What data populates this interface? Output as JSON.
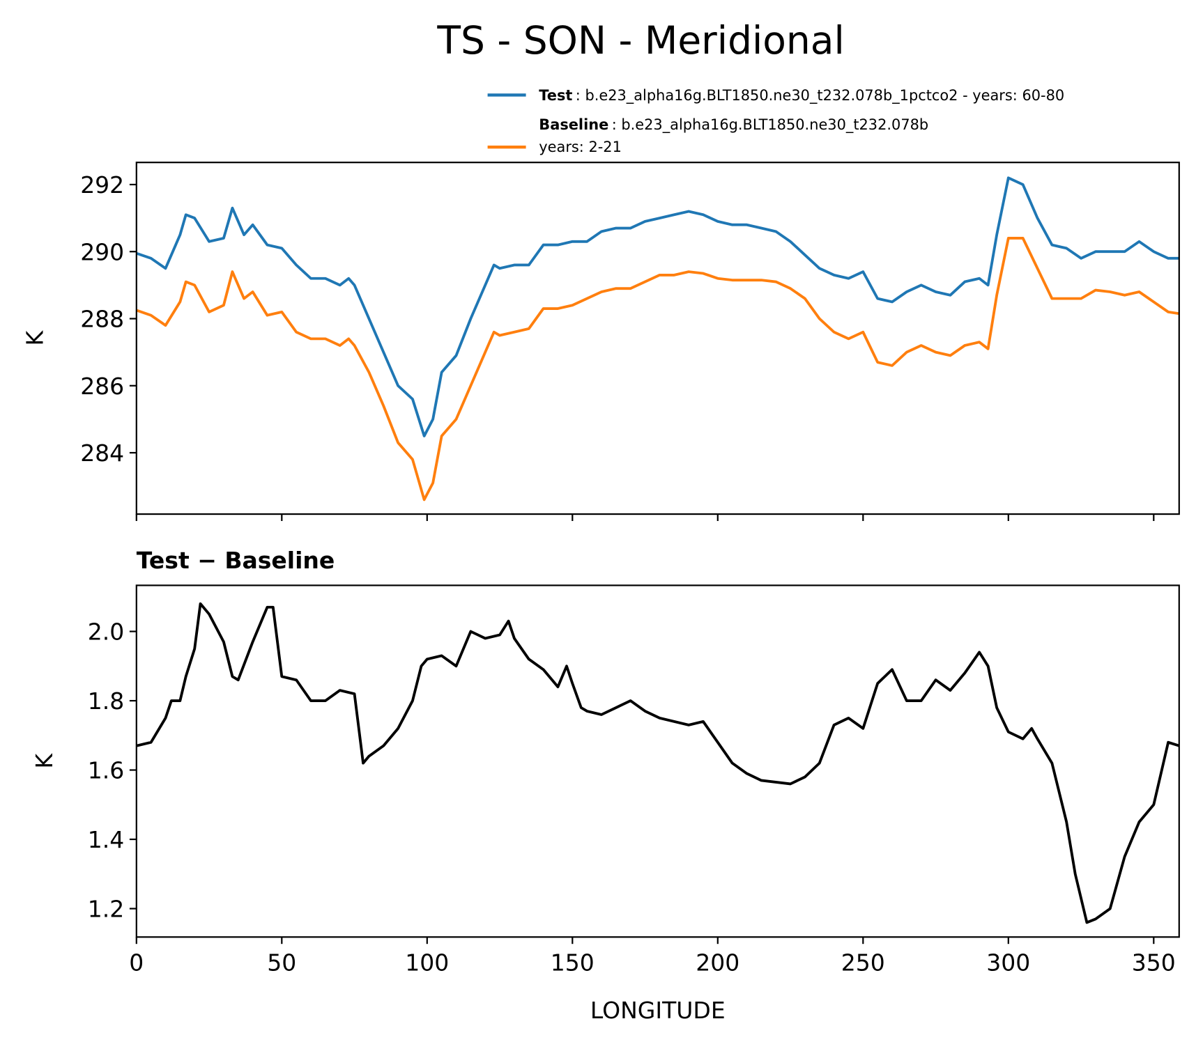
{
  "chart_data": [
    {
      "type": "line",
      "title": "TS - SON - Meridional",
      "ylabel": "K",
      "x": [
        0,
        5,
        10,
        15,
        17,
        20,
        25,
        30,
        33,
        37,
        40,
        45,
        50,
        55,
        60,
        65,
        70,
        73,
        75,
        80,
        85,
        90,
        95,
        99,
        102,
        105,
        110,
        115,
        120,
        123,
        125,
        130,
        135,
        140,
        145,
        150,
        155,
        160,
        165,
        170,
        175,
        180,
        185,
        190,
        195,
        200,
        205,
        210,
        215,
        220,
        225,
        230,
        235,
        240,
        245,
        250,
        255,
        260,
        265,
        270,
        275,
        280,
        285,
        290,
        293,
        296,
        300,
        305,
        310,
        315,
        320,
        325,
        330,
        335,
        340,
        345,
        350,
        355,
        358.75
      ],
      "series": [
        {
          "name": "Test",
          "description": [
            ": b.e23_alpha16g.BLT1850.ne30_t232.078b_1pctco2 - years: 60-80"
          ],
          "color": "#1f77b4",
          "values": [
            289.95,
            289.8,
            289.5,
            290.5,
            291.1,
            291.0,
            290.3,
            290.4,
            291.3,
            290.5,
            290.8,
            290.2,
            290.1,
            289.6,
            289.2,
            289.2,
            289.0,
            289.2,
            289.0,
            288.0,
            287.0,
            286.0,
            285.6,
            284.5,
            285.0,
            286.4,
            286.9,
            288.0,
            289.0,
            289.6,
            289.5,
            289.6,
            289.6,
            290.2,
            290.2,
            290.3,
            290.3,
            290.6,
            290.7,
            290.7,
            290.9,
            291.0,
            291.1,
            291.2,
            291.1,
            290.9,
            290.8,
            290.8,
            290.7,
            290.6,
            290.3,
            289.9,
            289.5,
            289.3,
            289.2,
            289.4,
            288.6,
            288.5,
            288.8,
            289.0,
            288.8,
            288.7,
            289.1,
            289.2,
            289.0,
            290.5,
            292.2,
            292.0,
            291.0,
            290.2,
            290.1,
            289.8,
            290.0,
            290.0,
            290.0,
            290.3,
            290.0,
            289.8,
            289.8
          ]
        },
        {
          "name": "Baseline",
          "description": [
            ": b.e23_alpha16g.BLT1850.ne30_t232.078b",
            "years: 2-21"
          ],
          "color": "#ff7f0e",
          "values": [
            288.25,
            288.1,
            287.8,
            288.5,
            289.1,
            289.0,
            288.2,
            288.4,
            289.4,
            288.6,
            288.8,
            288.1,
            288.2,
            287.6,
            287.4,
            287.4,
            287.2,
            287.4,
            287.2,
            286.4,
            285.4,
            284.3,
            283.8,
            282.6,
            283.1,
            284.5,
            285.0,
            286.0,
            287.0,
            287.6,
            287.5,
            287.6,
            287.7,
            288.3,
            288.3,
            288.4,
            288.6,
            288.8,
            288.9,
            288.9,
            289.1,
            289.3,
            289.3,
            289.4,
            289.35,
            289.2,
            289.15,
            289.15,
            289.15,
            289.1,
            288.9,
            288.6,
            288.0,
            287.6,
            287.4,
            287.6,
            286.7,
            286.6,
            287.0,
            287.2,
            287.0,
            286.9,
            287.2,
            287.3,
            287.1,
            288.7,
            290.4,
            290.4,
            289.5,
            288.6,
            288.6,
            288.6,
            288.85,
            288.8,
            288.7,
            288.8,
            288.5,
            288.2,
            288.15
          ]
        }
      ],
      "xlim": [
        0,
        358.75
      ],
      "xticks": [
        0,
        50,
        100,
        150,
        200,
        250,
        300,
        350
      ],
      "ylim": [
        282.17,
        292.66
      ],
      "yticks": [
        284,
        286,
        288,
        290,
        292
      ],
      "legend": "upper right"
    },
    {
      "type": "line",
      "title": "Test − Baseline",
      "ylabel": "K",
      "xlabel": "LONGITUDE",
      "x": [
        0,
        5,
        10,
        12,
        15,
        17,
        20,
        22,
        25,
        30,
        33,
        35,
        40,
        45,
        47,
        50,
        55,
        60,
        65,
        70,
        75,
        78,
        80,
        85,
        90,
        95,
        98,
        100,
        105,
        110,
        115,
        120,
        125,
        128,
        130,
        135,
        140,
        145,
        148,
        150,
        153,
        155,
        160,
        165,
        170,
        175,
        180,
        185,
        190,
        195,
        200,
        205,
        210,
        215,
        220,
        225,
        230,
        235,
        240,
        245,
        250,
        255,
        260,
        265,
        270,
        275,
        280,
        285,
        290,
        293,
        296,
        300,
        305,
        308,
        310,
        315,
        320,
        323,
        327,
        330,
        335,
        340,
        345,
        350,
        355,
        358.75
      ],
      "series": [
        {
          "name": "Test − Baseline",
          "color": "#000000",
          "values": [
            1.67,
            1.68,
            1.75,
            1.8,
            1.8,
            1.87,
            1.95,
            2.08,
            2.05,
            1.97,
            1.87,
            1.86,
            1.97,
            2.07,
            2.07,
            1.87,
            1.86,
            1.8,
            1.8,
            1.83,
            1.82,
            1.62,
            1.64,
            1.67,
            1.72,
            1.8,
            1.9,
            1.92,
            1.93,
            1.9,
            2.0,
            1.98,
            1.99,
            2.03,
            1.98,
            1.92,
            1.89,
            1.84,
            1.9,
            1.85,
            1.78,
            1.77,
            1.76,
            1.78,
            1.8,
            1.77,
            1.75,
            1.74,
            1.73,
            1.74,
            1.68,
            1.62,
            1.59,
            1.57,
            1.565,
            1.56,
            1.58,
            1.62,
            1.73,
            1.75,
            1.72,
            1.85,
            1.89,
            1.8,
            1.8,
            1.86,
            1.83,
            1.88,
            1.94,
            1.9,
            1.78,
            1.71,
            1.69,
            1.72,
            1.69,
            1.62,
            1.45,
            1.3,
            1.16,
            1.17,
            1.2,
            1.35,
            1.45,
            1.5,
            1.68,
            1.67
          ]
        }
      ],
      "xlim": [
        0,
        358.75
      ],
      "xticks": [
        0,
        50,
        100,
        150,
        200,
        250,
        300,
        350
      ],
      "ylim": [
        1.118,
        2.133
      ],
      "yticks": [
        1.2,
        1.4,
        1.6,
        1.8,
        {
          "value": 2,
          "label": "2.0"
        }
      ]
    }
  ]
}
